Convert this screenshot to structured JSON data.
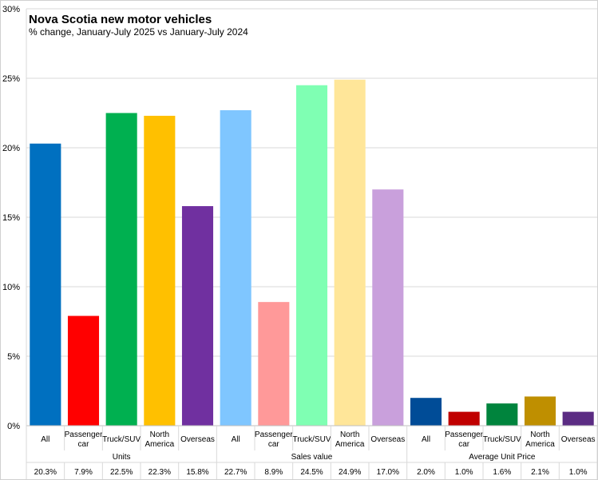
{
  "chart_data": {
    "type": "bar",
    "title": "Nova Scotia new motor vehicles",
    "subtitle": "% change, January-July 2025 vs January-July 2024",
    "ylim": [
      0,
      30
    ],
    "yticks": [
      "0%",
      "5%",
      "10%",
      "15%",
      "20%",
      "25%",
      "30%"
    ],
    "grid": true,
    "groups": [
      {
        "name": "Units",
        "categories": [
          [
            "All"
          ],
          [
            "Passenger",
            "car"
          ],
          [
            "Truck/SUV"
          ],
          [
            "North",
            "America"
          ],
          [
            "Overseas"
          ]
        ],
        "values": [
          20.3,
          7.9,
          22.5,
          22.3,
          15.8
        ],
        "labels": [
          "20.3%",
          "7.9%",
          "22.5%",
          "22.3%",
          "15.8%"
        ],
        "colors": [
          "#0070C0",
          "#FF0000",
          "#00B050",
          "#FFC000",
          "#7030A0"
        ]
      },
      {
        "name": "Sales value",
        "categories": [
          [
            "All"
          ],
          [
            "Passenger",
            "car"
          ],
          [
            "Truck/SUV"
          ],
          [
            "North",
            "America"
          ],
          [
            "Overseas"
          ]
        ],
        "values": [
          22.7,
          8.9,
          24.5,
          24.9,
          17.0
        ],
        "labels": [
          "22.7%",
          "8.9%",
          "24.5%",
          "24.9%",
          "17.0%"
        ],
        "colors": [
          "#7FC6FF",
          "#FF9999",
          "#7FFFB3",
          "#FFE699",
          "#C9A0DC"
        ]
      },
      {
        "name": "Average Unit Price",
        "categories": [
          [
            "All"
          ],
          [
            "Passenger",
            "car"
          ],
          [
            "Truck/SUV"
          ],
          [
            "North",
            "America"
          ],
          [
            "Overseas"
          ]
        ],
        "values": [
          2.0,
          1.0,
          1.6,
          2.1,
          1.0
        ],
        "labels": [
          "2.0%",
          "1.0%",
          "1.6%",
          "2.1%",
          "1.0%"
        ],
        "colors": [
          "#004C97",
          "#C00000",
          "#00843D",
          "#BF8F00",
          "#5B2C83"
        ]
      }
    ]
  }
}
